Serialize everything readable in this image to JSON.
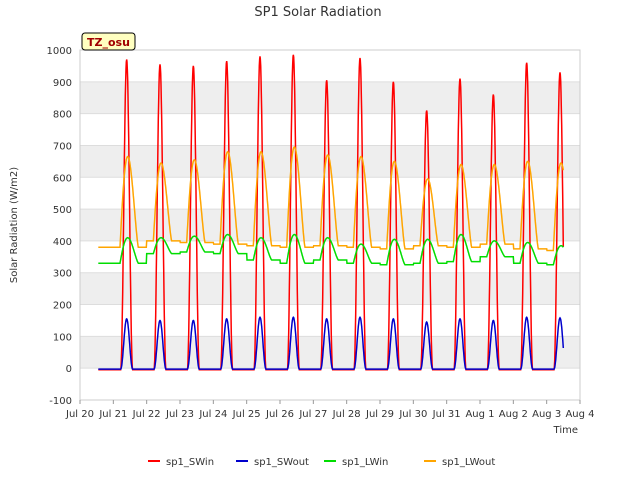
{
  "chart_data": {
    "type": "line",
    "title": "SP1 Solar Radiation",
    "xlabel": "Time",
    "ylabel": "Solar Radiation (W/m2)",
    "ylim": [
      -100,
      1000
    ],
    "yticks": [
      -100,
      0,
      100,
      200,
      300,
      400,
      500,
      600,
      700,
      800,
      900,
      1000
    ],
    "xlim": [
      "Jul 20",
      "Aug 4"
    ],
    "xticks": [
      "Jul 20",
      "Jul 21",
      "Jul 22",
      "Jul 23",
      "Jul 24",
      "Jul 25",
      "Jul 26",
      "Jul 27",
      "Jul 28",
      "Jul 29",
      "Jul 30",
      "Jul 31",
      "Aug 1",
      "Aug 2",
      "Aug 3",
      "Aug 4"
    ],
    "grid": "horizontal bands",
    "legend_position": "bottom",
    "annotation": "TZ_osu",
    "days": [
      "Jul 20",
      "Jul 21",
      "Jul 22",
      "Jul 23",
      "Jul 24",
      "Jul 25",
      "Jul 26",
      "Jul 27",
      "Jul 28",
      "Jul 29",
      "Jul 30",
      "Jul 31",
      "Aug 1",
      "Aug 2",
      "Aug 3"
    ],
    "series": [
      {
        "name": "sp1_SWin",
        "color": "#ff0000",
        "night": -5,
        "daily_peak": [
          970,
          955,
          950,
          965,
          980,
          985,
          905,
          975,
          900,
          810,
          910,
          860,
          960,
          930
        ]
      },
      {
        "name": "sp1_SWout",
        "color": "#0000cc",
        "night": -3,
        "daily_peak": [
          155,
          150,
          150,
          155,
          160,
          160,
          155,
          160,
          155,
          145,
          155,
          150,
          160,
          158
        ]
      },
      {
        "name": "sp1_LWin",
        "color": "#00dd00",
        "daily_night": [
          330,
          360,
          365,
          360,
          340,
          330,
          340,
          330,
          325,
          330,
          335,
          350,
          330,
          325,
          320
        ],
        "daily_peak": [
          410,
          410,
          415,
          420,
          410,
          420,
          410,
          390,
          405,
          405,
          420,
          400,
          395,
          385
        ]
      },
      {
        "name": "sp1_LWout",
        "color": "#ffa500",
        "daily_night": [
          380,
          400,
          395,
          390,
          385,
          380,
          385,
          380,
          375,
          385,
          380,
          390,
          375,
          370,
          380
        ],
        "daily_peak": [
          665,
          645,
          655,
          680,
          680,
          695,
          670,
          665,
          650,
          595,
          640,
          640,
          650,
          645
        ]
      }
    ]
  }
}
